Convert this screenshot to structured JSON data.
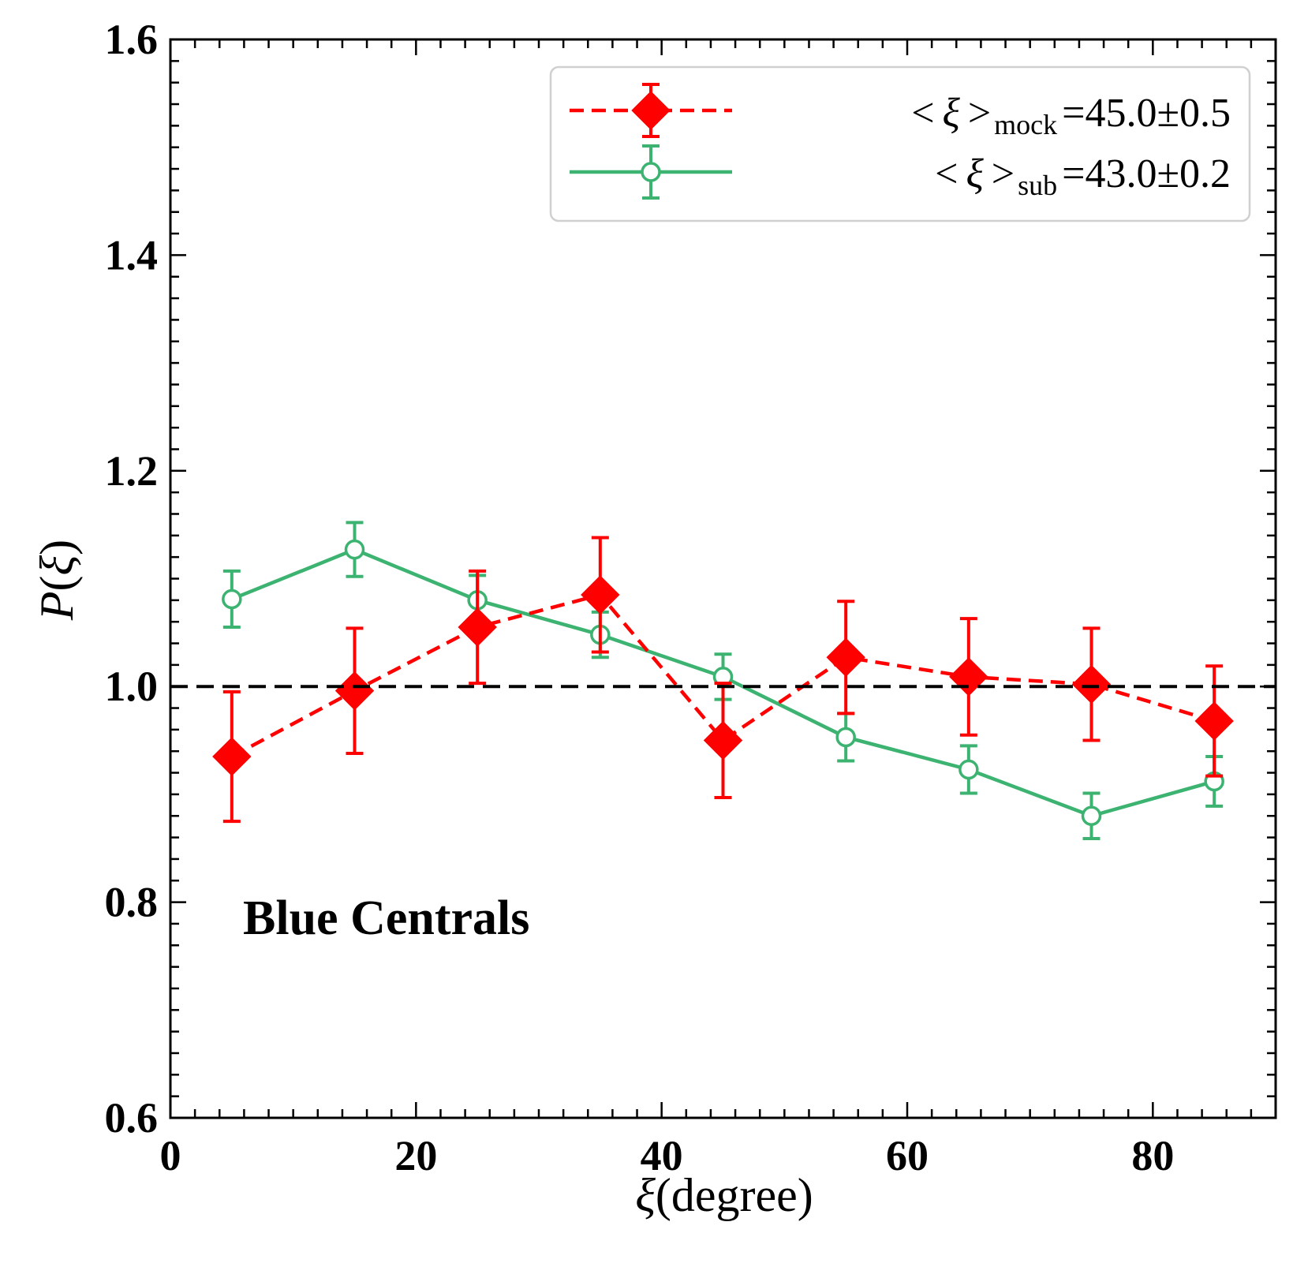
{
  "chart_data": {
    "type": "line",
    "title": "",
    "xlabel_symbol": "ξ",
    "xlabel_unit": "(degree)",
    "ylabel_italic_p": "P",
    "ylabel_open": "(",
    "ylabel_symbol": "ξ",
    "ylabel_close": ")",
    "xlim": [
      0,
      90
    ],
    "ylim": [
      0.6,
      1.6
    ],
    "xticks": [
      0,
      20,
      40,
      60,
      80
    ],
    "xtick_labels": [
      "0",
      "20",
      "40",
      "60",
      "80"
    ],
    "yticks": [
      0.6,
      0.8,
      1.0,
      1.2,
      1.4,
      1.6
    ],
    "ytick_labels": [
      "0.6",
      "0.8",
      "1.0",
      "1.2",
      "1.4",
      "1.6"
    ],
    "x": [
      5,
      15,
      25,
      35,
      45,
      55,
      65,
      75,
      85
    ],
    "reference_line": 1.0,
    "annotation": "Blue Centrals",
    "legend_position": "top-right",
    "series": [
      {
        "name": "mock",
        "color": "#ff0000",
        "linestyle": "dashed",
        "marker": "filled-diamond",
        "values": [
          0.935,
          0.996,
          1.055,
          1.085,
          0.95,
          1.027,
          1.009,
          1.002,
          0.968
        ],
        "errors": [
          0.06,
          0.058,
          0.052,
          0.053,
          0.053,
          0.052,
          0.054,
          0.052,
          0.051
        ],
        "legend": {
          "open": "<",
          "sym": "ξ",
          "close": ">",
          "sub": "mock",
          "eq": "=",
          "value": "45.0",
          "pm": "±",
          "err": "0.5"
        }
      },
      {
        "name": "sub",
        "color": "#3cb371",
        "linestyle": "solid",
        "marker": "open-circle",
        "values": [
          1.081,
          1.127,
          1.08,
          1.048,
          1.009,
          0.953,
          0.923,
          0.88,
          0.912
        ],
        "errors": [
          0.026,
          0.025,
          0.023,
          0.021,
          0.021,
          0.022,
          0.022,
          0.021,
          0.023
        ],
        "legend": {
          "open": "<",
          "sym": "ξ",
          "close": ">",
          "sub": "sub",
          "eq": "=",
          "value": "43.0",
          "pm": "±",
          "err": "0.2"
        }
      }
    ]
  }
}
